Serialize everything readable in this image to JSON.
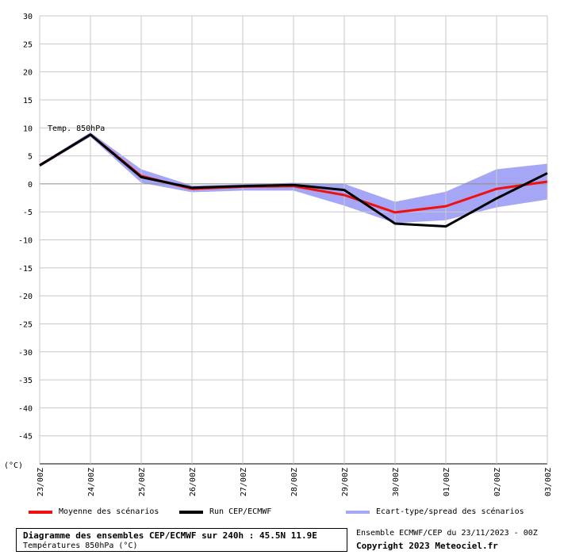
{
  "chart_data": {
    "type": "line",
    "annotation": "Temp. 850hPa",
    "unit_label": "(°C)",
    "categories": [
      "23/00Z",
      "24/00Z",
      "25/00Z",
      "26/00Z",
      "27/00Z",
      "28/00Z",
      "29/00Z",
      "30/00Z",
      "01/00Z",
      "02/00Z",
      "03/00Z"
    ],
    "ylim": [
      -50,
      30
    ],
    "yticks": [
      30,
      25,
      20,
      15,
      10,
      5,
      0,
      -5,
      -10,
      -15,
      -20,
      -25,
      -30,
      -35,
      -40,
      -45
    ],
    "grid": true,
    "series": [
      {
        "name": "Moyenne des scénarios",
        "color": "#ee1111",
        "values": [
          3.3,
          8.8,
          1.4,
          -0.9,
          -0.5,
          -0.4,
          -2.0,
          -5.1,
          -4.0,
          -0.9,
          0.4
        ]
      },
      {
        "name": "Run CEP/ECMWF",
        "color": "#000000",
        "values": [
          3.3,
          8.8,
          1.2,
          -0.7,
          -0.4,
          -0.2,
          -1.1,
          -7.1,
          -7.6,
          -2.6,
          1.9
        ]
      },
      {
        "name": "Ecart-type/spread des scénarios",
        "color": "#a6a6f7",
        "upper": [
          3.6,
          9.2,
          2.6,
          -0.3,
          -0.1,
          0.2,
          0.0,
          -3.2,
          -1.4,
          2.6,
          3.6
        ],
        "lower": [
          3.0,
          8.4,
          0.2,
          -1.5,
          -1.2,
          -1.2,
          -3.9,
          -7.0,
          -6.5,
          -4.2,
          -2.8
        ]
      }
    ]
  },
  "legend": {
    "mean_label": "Moyenne des scénarios",
    "run_label": "Run CEP/ECMWF",
    "spread_label": "Ecart-type/spread des scénarios"
  },
  "footer": {
    "title": "Diagramme des ensembles CEP/ECMWF sur 240h : 45.5N 11.9E",
    "subtitle": "Températures 850hPa (°C)",
    "ensemble": "Ensemble ECMWF/CEP du 23/11/2023 - 00Z",
    "copyright": "Copyright 2023 Meteociel.fr"
  },
  "colors": {
    "grid": "#c8c8c8",
    "zero_line": "#8c8c8c",
    "mean": "#ee1111",
    "run": "#000000",
    "spread": "#a6a6f7"
  }
}
